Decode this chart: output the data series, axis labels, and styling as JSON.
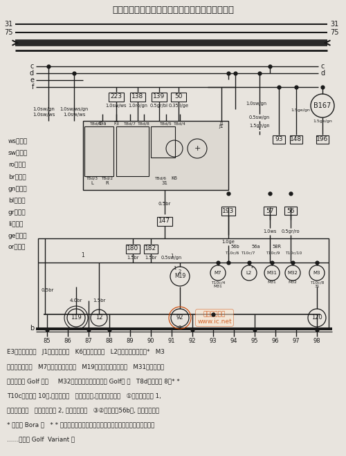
{
  "title": "警告灯开关、闪光继电器、右前大灯、右前转向灯",
  "bg_color": "#e8e4de",
  "line_color": "#1a1a1a",
  "figsize": [
    5.0,
    6.6
  ],
  "dpi": 100,
  "legend": [
    "ws＝白色",
    "sw＝黑色",
    "ro＝红色",
    "br＝棕色",
    "gn＝绿色",
    "bl＝蓝色",
    "gr＝灰色",
    "li＝紫色",
    "ge＝黄色",
    "or＝橙色"
  ],
  "bottom_text": [
    "E3－警告灯开关   J1－闪光继电器   K6－警告指示灯   L2－右大灯双丝灯泡*   M3",
    "－右停车灯灯泡   M7－右前转向灯灯泡   M19－右侧侧面转向灯泡   M31－右近光灯",
    "灯泡（仅指 Golf 车）     M32－右远光灯灯泡（仅指 Golf） 车   T8d－插头， 8孔* *",
    "T10c－插头， 10孔,在右大灯上   ⓪－接地点,在发动机室左侧   ①⓪－接地连接 1,",
    "在大灯线束内   ⓸－接地连接 2, 在大灯线束内   ③②－连接（56b）, 在车内线束内",
    "* －仅指 Bora 车   * * －闪光继电器上号码可能与插头号码不同，见故障查寻程序",
    "……－仅指 Golf  Variant 车"
  ]
}
